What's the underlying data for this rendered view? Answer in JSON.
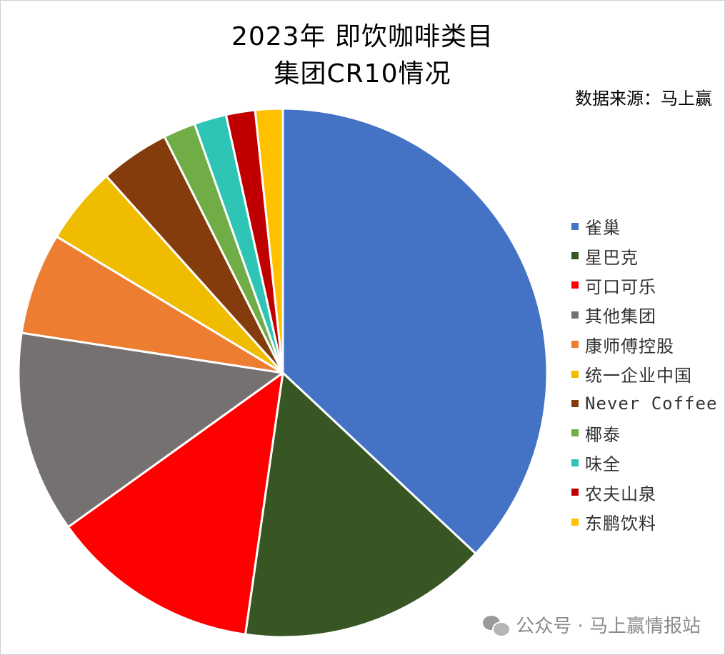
{
  "header": {
    "title_line1": "2023年 即饮咖啡类目",
    "title_line2": "集团CR10情况",
    "source": "数据来源：马上赢"
  },
  "watermark": {
    "text": "公众号 · 马上赢情报站",
    "icon": "wechat-icon"
  },
  "chart_data": {
    "type": "pie",
    "title": "2023年 即饮咖啡类目 集团CR10情况",
    "legend_position": "right",
    "start_angle_deg": 0,
    "direction": "clockwise",
    "slices": [
      {
        "label": "雀巢",
        "value": 37.5,
        "color": "#4472C4"
      },
      {
        "label": "星巴克",
        "value": 15.5,
        "color": "#375623"
      },
      {
        "label": "可口可乐",
        "value": 13.0,
        "color": "#FF0000"
      },
      {
        "label": "其他集团",
        "value": 12.5,
        "color": "#767171"
      },
      {
        "label": "康师傅控股",
        "value": 6.3,
        "color": "#ED7D31"
      },
      {
        "label": "统一企业中国",
        "value": 4.8,
        "color": "#F0BC00"
      },
      {
        "label": "Never Coffee",
        "value": 4.3,
        "color": "#843C0C"
      },
      {
        "label": "椰泰",
        "value": 2.0,
        "color": "#70AD47"
      },
      {
        "label": "味全",
        "value": 2.0,
        "color": "#2EC4B6"
      },
      {
        "label": "农夫山泉",
        "value": 1.8,
        "color": "#C00000"
      },
      {
        "label": "东鹏饮料",
        "value": 1.7,
        "color": "#FFC000"
      }
    ]
  }
}
